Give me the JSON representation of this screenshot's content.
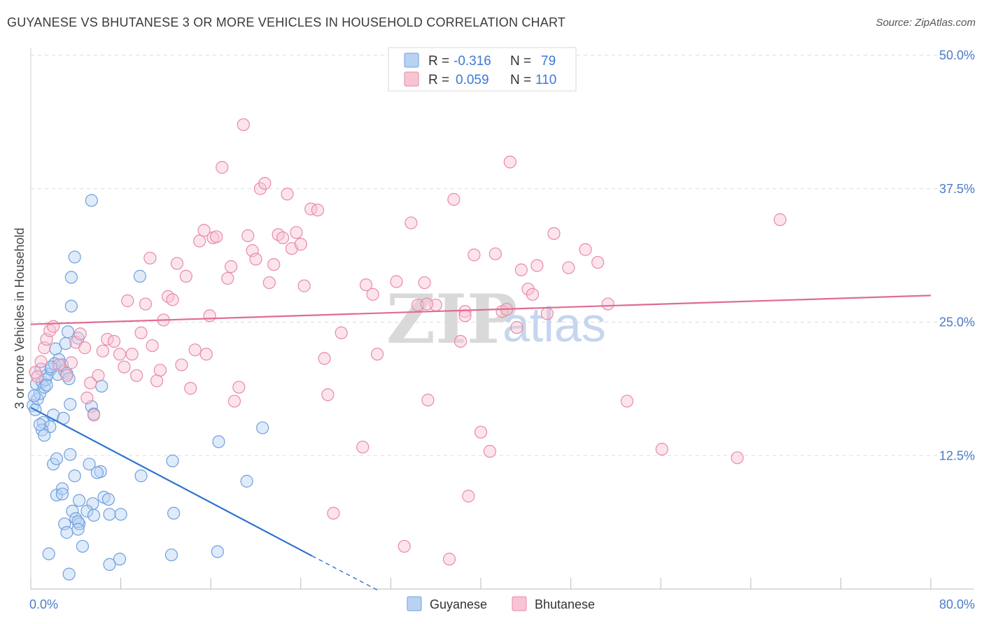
{
  "title": "GUYANESE VS BHUTANESE 3 OR MORE VEHICLES IN HOUSEHOLD CORRELATION CHART",
  "source": "Source: ZipAtlas.com",
  "watermark": {
    "zip": "ZIP",
    "atlas": "atlas"
  },
  "colors": {
    "guyanese_fill": "#b9d2f2",
    "guyanese_stroke": "#6f9fe0",
    "guyanese_line": "#2f72d2",
    "bhutanese_fill": "#f8c4d3",
    "bhutanese_stroke": "#e88aa8",
    "bhutanese_line": "#e06b93",
    "grid": "#dddddd",
    "axis_text": "#4a7cc9"
  },
  "legend": {
    "rows": [
      {
        "r_label": "R =",
        "r_value": "-0.316",
        "n_label": "N =",
        "n_value": "79"
      },
      {
        "r_label": "R =",
        "r_value": "0.059",
        "n_label": "N =",
        "n_value": "110"
      }
    ]
  },
  "chart_data": {
    "type": "scatter",
    "title": "GUYANESE VS BHUTANESE 3 OR MORE VEHICLES IN HOUSEHOLD CORRELATION CHART",
    "xlabel": "",
    "ylabel": "3 or more Vehicles in Household",
    "xlim": [
      0,
      80
    ],
    "ylim": [
      0,
      50
    ],
    "x_tick_labels": [
      "0.0%",
      "80.0%"
    ],
    "y_ticks": [
      12.5,
      25.0,
      37.5,
      50.0
    ],
    "y_tick_labels": [
      "12.5%",
      "25.0%",
      "37.5%",
      "50.0%"
    ],
    "grid": true,
    "series": [
      {
        "name": "Guyanese",
        "r": -0.316,
        "n": 79,
        "trend": {
          "x0": 0,
          "y0": 17.0,
          "x1": 25,
          "y1": 3.1,
          "dash_to_x": 31,
          "dash_to_y": -0.2
        },
        "points": [
          [
            0.2,
            17.2
          ],
          [
            0.4,
            16.8
          ],
          [
            0.6,
            17.8
          ],
          [
            0.8,
            18.3
          ],
          [
            0.5,
            19.2
          ],
          [
            1.0,
            19.4
          ],
          [
            1.2,
            18.9
          ],
          [
            1.3,
            19.6
          ],
          [
            1.4,
            19.1
          ],
          [
            1.5,
            20.1
          ],
          [
            0.9,
            20.6
          ],
          [
            1.8,
            20.6
          ],
          [
            2.2,
            22.5
          ],
          [
            2.4,
            20.1
          ],
          [
            2.5,
            21.5
          ],
          [
            2.1,
            21.1
          ],
          [
            2.8,
            21.0
          ],
          [
            3.0,
            20.4
          ],
          [
            3.2,
            20.2
          ],
          [
            3.4,
            19.7
          ],
          [
            3.1,
            23.0
          ],
          [
            3.3,
            24.1
          ],
          [
            4.2,
            23.5
          ],
          [
            1.1,
            15.6
          ],
          [
            1.7,
            15.2
          ],
          [
            2.0,
            16.3
          ],
          [
            2.9,
            16.0
          ],
          [
            3.5,
            17.3
          ],
          [
            1.0,
            14.9
          ],
          [
            1.2,
            14.4
          ],
          [
            2.0,
            11.7
          ],
          [
            2.3,
            12.2
          ],
          [
            3.5,
            12.6
          ],
          [
            3.9,
            10.6
          ],
          [
            5.2,
            11.7
          ],
          [
            6.2,
            11.0
          ],
          [
            5.9,
            10.9
          ],
          [
            6.5,
            8.6
          ],
          [
            6.9,
            8.4
          ],
          [
            5.5,
            8.0
          ],
          [
            4.3,
            8.3
          ],
          [
            3.7,
            7.3
          ],
          [
            2.3,
            8.8
          ],
          [
            2.8,
            9.4
          ],
          [
            2.8,
            8.9
          ],
          [
            4.0,
            6.6
          ],
          [
            4.3,
            6.1
          ],
          [
            5.0,
            7.3
          ],
          [
            5.6,
            6.9
          ],
          [
            4.2,
            6.3
          ],
          [
            3.0,
            6.1
          ],
          [
            3.2,
            5.3
          ],
          [
            4.2,
            5.6
          ],
          [
            7.0,
            7.0
          ],
          [
            8.0,
            7.0
          ],
          [
            4.6,
            4.0
          ],
          [
            1.6,
            3.3
          ],
          [
            7.0,
            2.3
          ],
          [
            7.9,
            2.8
          ],
          [
            3.4,
            1.4
          ],
          [
            12.5,
            3.2
          ],
          [
            16.6,
            3.5
          ],
          [
            12.7,
            7.1
          ],
          [
            19.2,
            10.1
          ],
          [
            16.7,
            13.8
          ],
          [
            20.6,
            15.1
          ],
          [
            12.6,
            12.0
          ],
          [
            9.8,
            10.6
          ],
          [
            9.7,
            29.3
          ],
          [
            5.4,
            36.4
          ],
          [
            3.6,
            29.2
          ],
          [
            3.9,
            31.1
          ],
          [
            3.6,
            26.5
          ],
          [
            5.4,
            17.1
          ],
          [
            5.6,
            16.4
          ],
          [
            6.3,
            19.0
          ],
          [
            1.8,
            20.8
          ],
          [
            0.3,
            18.1
          ],
          [
            0.8,
            15.4
          ]
        ]
      },
      {
        "name": "Bhutanese",
        "r": 0.059,
        "n": 110,
        "trend": {
          "x0": 0,
          "y0": 24.8,
          "x1": 80,
          "y1": 27.5
        },
        "points": [
          [
            0.4,
            20.3
          ],
          [
            0.6,
            19.9
          ],
          [
            0.9,
            21.3
          ],
          [
            1.2,
            22.6
          ],
          [
            1.4,
            23.4
          ],
          [
            1.7,
            24.2
          ],
          [
            2.0,
            24.6
          ],
          [
            2.5,
            21.0
          ],
          [
            3.2,
            20.0
          ],
          [
            3.6,
            21.2
          ],
          [
            4.0,
            23.1
          ],
          [
            4.4,
            23.9
          ],
          [
            4.8,
            22.6
          ],
          [
            5.0,
            17.9
          ],
          [
            5.3,
            19.3
          ],
          [
            5.6,
            16.3
          ],
          [
            6.0,
            20.0
          ],
          [
            6.4,
            22.3
          ],
          [
            6.8,
            23.4
          ],
          [
            7.4,
            23.2
          ],
          [
            7.9,
            22.0
          ],
          [
            8.3,
            20.8
          ],
          [
            8.6,
            27.0
          ],
          [
            9.0,
            22.0
          ],
          [
            9.4,
            20.0
          ],
          [
            9.8,
            24.0
          ],
          [
            10.2,
            26.7
          ],
          [
            10.6,
            31.0
          ],
          [
            10.8,
            22.8
          ],
          [
            11.2,
            19.5
          ],
          [
            11.5,
            20.5
          ],
          [
            11.8,
            25.2
          ],
          [
            12.2,
            27.4
          ],
          [
            12.6,
            27.1
          ],
          [
            13.0,
            30.5
          ],
          [
            13.4,
            21.0
          ],
          [
            13.8,
            29.3
          ],
          [
            14.2,
            18.8
          ],
          [
            14.6,
            22.4
          ],
          [
            15.0,
            32.6
          ],
          [
            15.4,
            33.6
          ],
          [
            15.6,
            22.0
          ],
          [
            15.9,
            25.6
          ],
          [
            16.2,
            32.9
          ],
          [
            16.5,
            33.0
          ],
          [
            17.0,
            39.5
          ],
          [
            17.5,
            29.1
          ],
          [
            17.8,
            30.2
          ],
          [
            18.1,
            17.6
          ],
          [
            18.5,
            18.9
          ],
          [
            18.9,
            43.5
          ],
          [
            19.3,
            33.1
          ],
          [
            19.7,
            31.7
          ],
          [
            20.0,
            30.9
          ],
          [
            20.4,
            37.5
          ],
          [
            20.8,
            38.0
          ],
          [
            21.2,
            28.7
          ],
          [
            21.6,
            30.4
          ],
          [
            22.0,
            33.2
          ],
          [
            22.4,
            32.9
          ],
          [
            22.8,
            37.0
          ],
          [
            23.2,
            31.9
          ],
          [
            23.6,
            33.4
          ],
          [
            24.0,
            32.3
          ],
          [
            24.3,
            28.4
          ],
          [
            24.9,
            35.6
          ],
          [
            25.5,
            35.5
          ],
          [
            26.1,
            21.6
          ],
          [
            26.4,
            18.2
          ],
          [
            26.9,
            7.1
          ],
          [
            27.6,
            24.0
          ],
          [
            29.5,
            13.3
          ],
          [
            29.8,
            28.5
          ],
          [
            30.4,
            27.6
          ],
          [
            30.8,
            22.0
          ],
          [
            32.5,
            28.8
          ],
          [
            33.2,
            4.0
          ],
          [
            33.8,
            34.3
          ],
          [
            34.4,
            26.6
          ],
          [
            35.0,
            28.7
          ],
          [
            35.3,
            17.7
          ],
          [
            36.0,
            26.6
          ],
          [
            37.2,
            2.8
          ],
          [
            37.6,
            36.5
          ],
          [
            38.2,
            23.2
          ],
          [
            38.6,
            26.0
          ],
          [
            38.9,
            8.7
          ],
          [
            39.4,
            31.3
          ],
          [
            40.0,
            14.7
          ],
          [
            40.8,
            12.9
          ],
          [
            41.3,
            31.4
          ],
          [
            41.9,
            26.0
          ],
          [
            42.6,
            40.0
          ],
          [
            43.2,
            24.5
          ],
          [
            43.6,
            29.9
          ],
          [
            44.2,
            28.1
          ],
          [
            44.6,
            27.6
          ],
          [
            45.0,
            30.3
          ],
          [
            45.9,
            25.8
          ],
          [
            46.5,
            33.3
          ],
          [
            47.8,
            30.1
          ],
          [
            49.3,
            31.8
          ],
          [
            50.4,
            30.6
          ],
          [
            51.3,
            26.7
          ],
          [
            35.2,
            26.7
          ],
          [
            38.6,
            25.6
          ],
          [
            42.3,
            26.2
          ],
          [
            53.0,
            17.6
          ],
          [
            56.1,
            13.1
          ],
          [
            62.8,
            12.3
          ],
          [
            66.6,
            34.6
          ]
        ]
      }
    ]
  },
  "bottom_legend": {
    "items": [
      {
        "label": "Guyanese"
      },
      {
        "label": "Bhutanese"
      }
    ]
  }
}
